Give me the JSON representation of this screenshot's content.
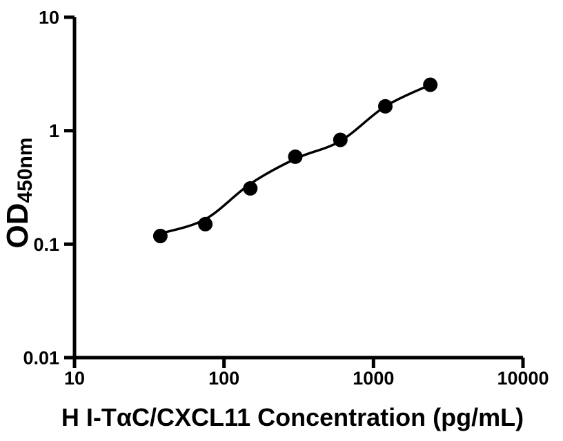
{
  "figure": {
    "background_color": "#ffffff",
    "ink_color": "#000000"
  },
  "chart_data": {
    "type": "scatter",
    "title": "",
    "xlabel": "H I-TαC/CXCL11 Concentration (pg/mL)",
    "ylabel_main": "OD",
    "ylabel_subscript": "450nm",
    "x_scale": "log10",
    "y_scale": "log10",
    "xlim": [
      10,
      10000
    ],
    "ylim": [
      0.01,
      10
    ],
    "x_ticks": [
      {
        "value": 10,
        "label": "10"
      },
      {
        "value": 100,
        "label": "100"
      },
      {
        "value": 1000,
        "label": "1000"
      },
      {
        "value": 10000,
        "label": "10000"
      }
    ],
    "y_ticks": [
      {
        "value": 0.01,
        "label": "0.01"
      },
      {
        "value": 0.1,
        "label": "0.1"
      },
      {
        "value": 1,
        "label": "1"
      },
      {
        "value": 10,
        "label": "10"
      }
    ],
    "grid": false,
    "legend": null,
    "series": [
      {
        "name": "standard-data-points",
        "type": "scatter",
        "marker": "filled-circle",
        "color": "#000000",
        "x": [
          37.5,
          75,
          150,
          300,
          600,
          1200,
          2400
        ],
        "y": [
          0.118,
          0.15,
          0.31,
          0.59,
          0.83,
          1.64,
          2.54
        ]
      },
      {
        "name": "fitted-standard-curve",
        "type": "line",
        "color": "#000000",
        "x": [
          37.5,
          75,
          150,
          300,
          600,
          1200,
          2400
        ],
        "y": [
          0.124,
          0.166,
          0.34,
          0.565,
          0.81,
          1.64,
          2.54
        ]
      }
    ]
  }
}
